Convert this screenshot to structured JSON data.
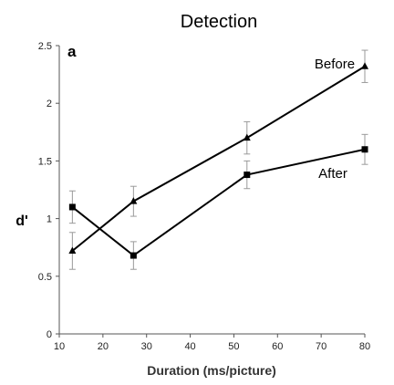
{
  "chart_data": {
    "type": "line",
    "title": "Detection",
    "panel_label": "a",
    "xlabel": "Duration (ms/picture)",
    "ylabel": "d'",
    "xlim": [
      10,
      80
    ],
    "ylim": [
      0,
      2.5
    ],
    "x_ticks": [
      10,
      20,
      30,
      40,
      50,
      60,
      70,
      80
    ],
    "y_ticks": [
      {
        "value": 0,
        "label": "0"
      },
      {
        "value": 0.5,
        "label": "0.5"
      },
      {
        "value": 1,
        "label": "1"
      },
      {
        "value": 1.5,
        "label": "1.5"
      },
      {
        "value": 2,
        "label": "2"
      },
      {
        "value": 2.5,
        "label": "2.5"
      }
    ],
    "grid": false,
    "legend": "none",
    "x": [
      13,
      27,
      53,
      80
    ],
    "series": [
      {
        "name": "Before",
        "marker": "triangle",
        "values": [
          0.72,
          1.15,
          1.7,
          2.32
        ],
        "error": [
          0.16,
          0.13,
          0.14,
          0.14
        ]
      },
      {
        "name": "After",
        "marker": "square",
        "values": [
          1.1,
          0.68,
          1.38,
          1.6
        ],
        "error": [
          0.14,
          0.12,
          0.12,
          0.13
        ]
      }
    ],
    "colors": {
      "line": "#000000",
      "error_bar": "#9a9a9a",
      "axis": "#555555"
    }
  }
}
